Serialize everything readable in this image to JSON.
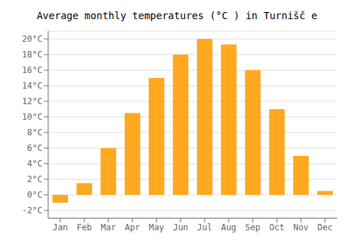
{
  "chart_data": {
    "type": "bar",
    "title": "Average monthly temperatures (°C ) in Turnišč e",
    "categories": [
      "Jan",
      "Feb",
      "Mar",
      "Apr",
      "May",
      "Jun",
      "Jul",
      "Aug",
      "Sep",
      "Oct",
      "Nov",
      "Dec"
    ],
    "values": [
      -1.0,
      1.5,
      6.0,
      10.5,
      15.0,
      18.0,
      20.0,
      19.3,
      16.0,
      11.0,
      5.0,
      0.5
    ],
    "color": "#FFA820",
    "ylim": [
      -3,
      21
    ],
    "yticks": [
      {
        "value": -2,
        "label": "-2°C"
      },
      {
        "value": 0,
        "label": "0°C"
      },
      {
        "value": 2,
        "label": "2°C"
      },
      {
        "value": 4,
        "label": "4°C"
      },
      {
        "value": 6,
        "label": "6°C"
      },
      {
        "value": 8,
        "label": "8°C"
      },
      {
        "value": 10,
        "label": "10°C"
      },
      {
        "value": 12,
        "label": "12°C"
      },
      {
        "value": 14,
        "label": "14°C"
      },
      {
        "value": 16,
        "label": "16°C"
      },
      {
        "value": 18,
        "label": "18°C"
      },
      {
        "value": 20,
        "label": "20°C"
      }
    ],
    "grid": true
  }
}
